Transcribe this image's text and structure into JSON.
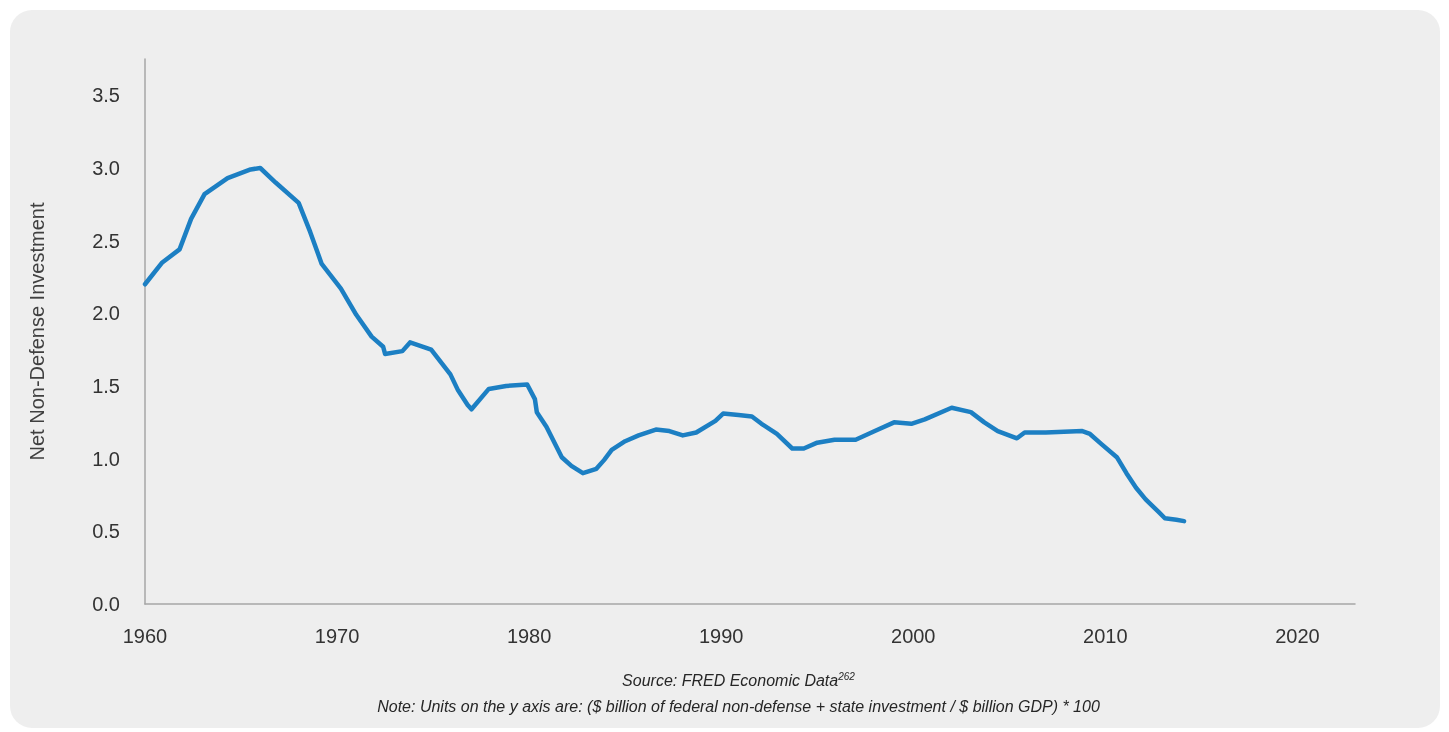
{
  "chart_data": {
    "type": "line",
    "ylabel": "Net Non-Defense Investment",
    "annotations": [
      "Source: FRED Economic Data$^{262}$",
      "Note: Units on the y axis are: ($ billion of federal non-defense + state investment / $ billion GDP) * 100"
    ],
    "x": [
      1960.0,
      1960.9,
      1961.8,
      1962.4,
      1963.1,
      1964.3,
      1965.5,
      1966.0,
      1966.8,
      1968.0,
      1968.6,
      1969.2,
      1970.2,
      1971.0,
      1971.8,
      1972.4,
      1972.5,
      1973.4,
      1973.8,
      1974.9,
      1975.9,
      1976.3,
      1976.8,
      1977.0,
      1977.9,
      1978.8,
      1979.9,
      1980.3,
      1980.4,
      1980.9,
      1981.7,
      1982.2,
      1982.8,
      1983.5,
      1983.9,
      1984.3,
      1985.0,
      1985.7,
      1986.6,
      1987.3,
      1988.0,
      1988.7,
      1989.7,
      1990.1,
      1990.9,
      1991.6,
      1992.1,
      1992.9,
      1993.7,
      1994.3,
      1995.0,
      1995.9,
      1997.0,
      1998.0,
      1999.0,
      1999.9,
      2000.6,
      2002.0,
      2003.0,
      2003.7,
      2004.4,
      2005.4,
      2005.8,
      2006.9,
      2008.8,
      2009.2,
      2009.8,
      2010.6,
      2011.1,
      2011.6,
      2012.1,
      2012.8,
      2013.1,
      2013.7,
      2014.1
    ],
    "values": [
      2.2,
      2.35,
      2.44,
      2.65,
      2.82,
      2.93,
      2.99,
      3.0,
      2.9,
      2.76,
      2.56,
      2.34,
      2.17,
      1.99,
      1.84,
      1.77,
      1.72,
      1.74,
      1.8,
      1.75,
      1.58,
      1.47,
      1.37,
      1.34,
      1.48,
      1.5,
      1.51,
      1.41,
      1.32,
      1.22,
      1.01,
      0.95,
      0.9,
      0.93,
      0.99,
      1.06,
      1.12,
      1.16,
      1.2,
      1.19,
      1.16,
      1.18,
      1.26,
      1.31,
      1.3,
      1.29,
      1.24,
      1.17,
      1.07,
      1.07,
      1.11,
      1.13,
      1.13,
      1.19,
      1.25,
      1.24,
      1.27,
      1.35,
      1.32,
      1.25,
      1.19,
      1.14,
      1.18,
      1.18,
      1.19,
      1.17,
      1.1,
      1.01,
      0.9,
      0.8,
      0.72,
      0.63,
      0.59,
      0.58,
      0.57
    ],
    "color": "#1c7fc3",
    "xlim": [
      1960,
      2023
    ],
    "xticks": [
      1960,
      1970,
      1980,
      1990,
      2000,
      2010,
      2020
    ],
    "ylim": [
      0,
      3.75
    ],
    "yticks": [
      {
        "value": 0,
        "label": "0.0"
      },
      0.5,
      {
        "value": 1,
        "label": "1.0"
      },
      1.5,
      {
        "value": 2,
        "label": "2.0"
      },
      2.5,
      {
        "value": 3,
        "label": "3.0"
      },
      3.5
    ]
  }
}
